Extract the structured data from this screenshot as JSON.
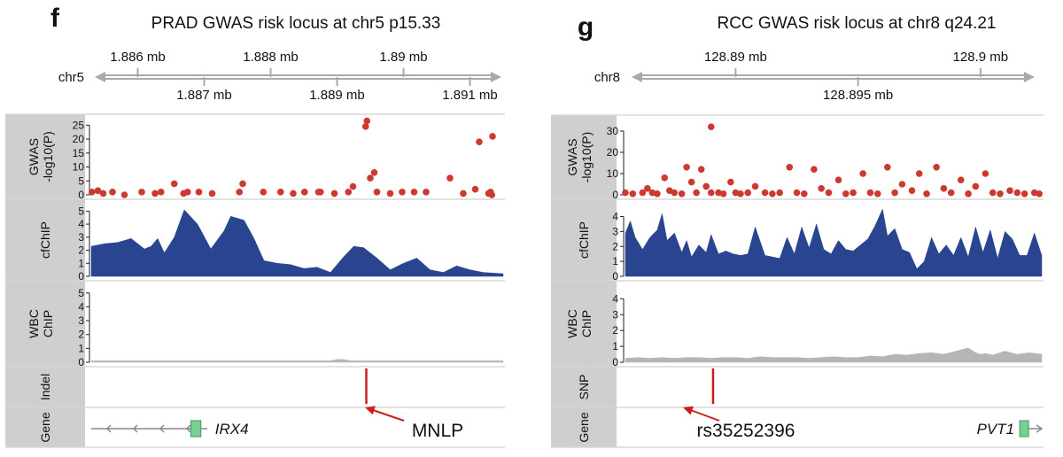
{
  "colors": {
    "gwas": "#cc3a2f",
    "cfchip": "#2a4590",
    "wbc": "#b5b5b5",
    "marker": "#cc1e1e",
    "label_bg": "#cfcfcf",
    "axis": "#a9a9a9",
    "gene_box": "#7ccc95"
  },
  "chart_data": [
    {
      "type": "genome-track",
      "panel_letter": "f",
      "title": "PRAD GWAS risk locus at chr5 p15.33",
      "chrom": "chr5",
      "xlim_mb": [
        1.8853,
        1.8915
      ],
      "ticks_top": [
        {
          "pos": 1.886,
          "label": "1.886 mb"
        },
        {
          "pos": 1.888,
          "label": "1.888 mb"
        },
        {
          "pos": 1.89,
          "label": "1.89 mb"
        }
      ],
      "ticks_bottom": [
        {
          "pos": 1.887,
          "label": "1.887 mb"
        },
        {
          "pos": 1.889,
          "label": "1.889 mb"
        },
        {
          "pos": 1.891,
          "label": "1.891 mb"
        }
      ],
      "gwas": {
        "label_1": "GWAS",
        "label_2": "-log10(P)",
        "yticks": [
          "0",
          "5",
          "10",
          "15",
          "20",
          "25"
        ],
        "ylim": [
          0,
          27
        ],
        "x": [
          1.88531,
          1.8854,
          1.88548,
          1.88562,
          1.8858,
          1.88606,
          1.88626,
          1.88635,
          1.88655,
          1.88669,
          1.88675,
          1.88692,
          1.88712,
          1.88753,
          1.88758,
          1.88789,
          1.88815,
          1.88834,
          1.88851,
          1.88872,
          1.88875,
          1.88896,
          1.88917,
          1.88924,
          1.8895,
          1.88956,
          1.8896,
          1.8898,
          1.88998,
          1.89016,
          1.89034,
          1.8907,
          1.8909,
          1.89108,
          1.89114,
          1.89128,
          1.89131,
          1.89133,
          1.89134
        ],
        "y": [
          1,
          1.5,
          0.5,
          1,
          0,
          1,
          0.5,
          1,
          4,
          0.5,
          1,
          1,
          0.5,
          1,
          4,
          1,
          1,
          0.5,
          1,
          1,
          1,
          0.5,
          1,
          3,
          6,
          8,
          1,
          0.5,
          1,
          1,
          1,
          6,
          0.5,
          2,
          19,
          0.5,
          1,
          0,
          21
        ],
        "highlight_x": [
          1.88943,
          1.88945
        ],
        "highlight_y": [
          24.5,
          26.5
        ]
      },
      "cfchip": {
        "label_1": "cfChIP",
        "yticks": [
          "0",
          "1",
          "2",
          "3",
          "4",
          "5"
        ],
        "ylim": [
          0,
          5.5
        ],
        "x": [
          1.8853,
          1.8855,
          1.8857,
          1.8859,
          1.8861,
          1.8862,
          1.8863,
          1.8864,
          1.88655,
          1.8867,
          1.8869,
          1.8871,
          1.8873,
          1.8874,
          1.8876,
          1.88775,
          1.8879,
          1.8881,
          1.8883,
          1.8885,
          1.8887,
          1.8889,
          1.8891,
          1.88925,
          1.8894,
          1.8896,
          1.8898,
          1.89,
          1.8902,
          1.8904,
          1.8906,
          1.8908,
          1.891,
          1.8912,
          1.8915
        ],
        "y": [
          2.3,
          2.5,
          2.6,
          2.9,
          2.1,
          2.3,
          2.9,
          1.8,
          3.0,
          5.1,
          4.0,
          2.1,
          3.5,
          4.6,
          4.3,
          2.9,
          1.2,
          1.0,
          0.9,
          0.6,
          0.7,
          0.3,
          1.5,
          2.3,
          2.2,
          1.4,
          0.5,
          1.0,
          1.4,
          0.5,
          0.3,
          0.8,
          0.5,
          0.3,
          0.2
        ]
      },
      "wbc": {
        "label_1": "WBC",
        "label_2": "ChIP",
        "yticks": [
          "0",
          "1",
          "2",
          "3",
          "4",
          "5"
        ],
        "ylim": [
          0,
          5.5
        ],
        "x": [
          1.8853,
          1.88545,
          1.8856,
          1.8857,
          1.8858,
          1.8859,
          1.8861,
          1.8862,
          1.8863,
          1.8864,
          1.8865,
          1.8866,
          1.88665,
          1.8869,
          1.8872,
          1.8874,
          1.8875,
          1.8876,
          1.8877,
          1.8878,
          1.8879,
          1.888,
          1.8881,
          1.8882,
          1.8883,
          1.8884,
          1.8885,
          1.8886,
          1.8887,
          1.8888,
          1.8889,
          1.889,
          1.8891,
          1.8892,
          1.8893,
          1.8894,
          1.8895,
          1.8896,
          1.8897,
          1.8898,
          1.8899,
          1.89,
          1.8901,
          1.8902,
          1.8903,
          1.8904,
          1.8905,
          1.8906,
          1.8907,
          1.8908,
          1.8909,
          1.891,
          1.8911,
          1.8912,
          1.8913,
          1.8914,
          1.8915
        ],
        "y": [
          0.1,
          0.1,
          0.1,
          0.1,
          0.1,
          0.1,
          0.1,
          0.1,
          0.1,
          0.1,
          0.1,
          0.1,
          0.1,
          0.1,
          0.1,
          0.1,
          0.1,
          0.1,
          0.1,
          0.1,
          0.1,
          0.1,
          0.1,
          0.1,
          0.1,
          0.1,
          0.1,
          0.1,
          0.1,
          0.1,
          0.1,
          0.2,
          0.2,
          0.1,
          0.1,
          0.1,
          0.1,
          0.1,
          0.1,
          0.1,
          0.1,
          0.1,
          0.1,
          0.1,
          0.1,
          0.1,
          0.1,
          0.1,
          0.1,
          0.1,
          0.1,
          0.1,
          0.1,
          0.1,
          0.1,
          0.1,
          0.1
        ]
      },
      "variant_track": {
        "label": "Indel",
        "x": 1.88944
      },
      "gene_track": {
        "label": "Gene",
        "gene": "IRX4",
        "gene_start": 1.8853,
        "gene_end": 1.88705,
        "exon_start": 1.8868,
        "exon_end": 1.88695,
        "strand": "-"
      },
      "annotation": {
        "text": "MNLP"
      }
    },
    {
      "type": "genome-track",
      "panel_letter": "g",
      "title": "RCC GWAS risk locus at chr8 q24.21",
      "chrom": "chr8",
      "xlim_mb": [
        128.8855,
        128.9025
      ],
      "ticks_top": [
        {
          "pos": 128.89,
          "label": "128.89 mb"
        },
        {
          "pos": 128.9,
          "label": "128.9 mb"
        }
      ],
      "ticks_bottom": [
        {
          "pos": 128.895,
          "label": "128.895 mb"
        }
      ],
      "gwas": {
        "label_1": "GWAS",
        "label_2": "-log10(P)",
        "yticks": [
          "0",
          "10",
          "20",
          "30"
        ],
        "ylim": [
          0,
          35
        ],
        "x": [
          128.8855,
          128.8858,
          128.8862,
          128.8864,
          128.8866,
          128.8868,
          128.8871,
          128.8873,
          128.8875,
          128.8878,
          128.888,
          128.8882,
          128.8884,
          128.8886,
          128.8888,
          128.889,
          128.8893,
          128.8895,
          128.8898,
          128.89,
          128.8902,
          128.8905,
          128.8908,
          128.8912,
          128.8915,
          128.8918,
          128.8922,
          128.8925,
          128.8928,
          128.8932,
          128.8935,
          128.8938,
          128.8942,
          128.8945,
          128.8948,
          128.8952,
          128.8955,
          128.8958,
          128.8962,
          128.8965,
          128.8968,
          128.8972,
          128.8975,
          128.8978,
          128.8982,
          128.8985,
          128.8988,
          128.8992,
          128.8995,
          128.8998,
          128.9002,
          128.9005,
          128.9008,
          128.9012,
          128.9015,
          128.9018,
          128.9022,
          128.9024
        ],
        "y": [
          1,
          0.5,
          1,
          3,
          1,
          0.5,
          8,
          2,
          1,
          0.5,
          13,
          6,
          1,
          12,
          4,
          1,
          1,
          0.5,
          6,
          1,
          0.5,
          1,
          4,
          1,
          0.5,
          1,
          13,
          1,
          0.5,
          12,
          3,
          1,
          7,
          0.5,
          1,
          10,
          1,
          0.5,
          13,
          1,
          5,
          2,
          10,
          0.5,
          13,
          3,
          1,
          7,
          0.5,
          4,
          10,
          1,
          0.5,
          2,
          1,
          0.5,
          1,
          0.5
        ],
        "highlight_x": [
          128.889
        ],
        "highlight_y": [
          32
        ]
      },
      "cfchip": {
        "label_1": "cfChIP",
        "yticks": [
          "0",
          "1",
          "2",
          "3",
          "4"
        ],
        "ylim": [
          0,
          4.8
        ],
        "x": [
          128.8855,
          128.8857,
          128.8859,
          128.8862,
          128.8865,
          128.8868,
          128.887,
          128.8872,
          128.8875,
          128.8878,
          128.888,
          128.8882,
          128.8885,
          128.8888,
          128.889,
          128.8893,
          128.8896,
          128.8899,
          128.8902,
          128.8905,
          128.8908,
          128.8912,
          128.8915,
          128.8918,
          128.8921,
          128.8924,
          128.8927,
          128.893,
          128.8933,
          128.8936,
          128.8939,
          128.8942,
          128.8945,
          128.8948,
          128.8951,
          128.8954,
          128.8957,
          128.896,
          128.8962,
          128.8965,
          128.8968,
          128.8971,
          128.8974,
          128.8977,
          128.898,
          128.8983,
          128.8986,
          128.8989,
          128.8992,
          128.8995,
          128.8998,
          128.9001,
          128.9004,
          128.9007,
          128.901,
          128.9013,
          128.9016,
          128.9019,
          128.9022,
          128.9025
        ],
        "y": [
          2.9,
          3.7,
          2.6,
          1.8,
          2.6,
          3.1,
          4.2,
          2.4,
          2.9,
          1.6,
          2.4,
          1.3,
          2.1,
          1.6,
          2.8,
          1.5,
          1.7,
          1.5,
          1.4,
          1.5,
          3.3,
          1.4,
          1.3,
          1.2,
          2.6,
          1.5,
          3.3,
          1.9,
          3.5,
          1.8,
          1.5,
          2.4,
          1.8,
          1.7,
          2.1,
          2.5,
          3.4,
          4.5,
          2.7,
          3.2,
          1.8,
          1.6,
          0.5,
          1.0,
          2.6,
          1.5,
          2.1,
          1.4,
          2.6,
          1.3,
          3.3,
          1.6,
          3.1,
          1.2,
          3.0,
          2.5,
          1.4,
          1.4,
          2.9,
          1.4
        ]
      },
      "wbc": {
        "label_1": "WBC",
        "label_2": "ChIP",
        "yticks": [
          "0",
          "1",
          "2",
          "3",
          "4"
        ],
        "ylim": [
          0,
          4.8
        ],
        "x": [
          128.8855,
          128.886,
          128.8865,
          128.887,
          128.8875,
          128.888,
          128.8885,
          128.889,
          128.8895,
          128.89,
          128.8905,
          128.891,
          128.8915,
          128.892,
          128.8925,
          128.893,
          128.8935,
          128.894,
          128.8945,
          128.895,
          128.8955,
          128.896,
          128.8965,
          128.897,
          128.8975,
          128.898,
          128.8985,
          128.899,
          128.8995,
          128.8998,
          128.9,
          128.9002,
          128.9005,
          128.901,
          128.9015,
          128.902,
          128.9025
        ],
        "y": [
          0.25,
          0.3,
          0.25,
          0.3,
          0.25,
          0.3,
          0.3,
          0.25,
          0.3,
          0.3,
          0.25,
          0.35,
          0.3,
          0.3,
          0.3,
          0.25,
          0.3,
          0.35,
          0.3,
          0.3,
          0.4,
          0.35,
          0.5,
          0.45,
          0.55,
          0.6,
          0.5,
          0.7,
          0.9,
          0.6,
          0.5,
          0.55,
          0.45,
          0.7,
          0.5,
          0.6,
          0.5
        ]
      },
      "variant_track": {
        "label": "SNP",
        "x": 128.88908
      },
      "gene_track": {
        "label": "Gene",
        "gene": "PVT1",
        "gene_start": 128.9016,
        "gene_end": 128.9025,
        "exon_start": 128.9016,
        "exon_end": 128.90185,
        "strand": "+"
      },
      "annotation": {
        "text": "rs35252396"
      }
    }
  ]
}
